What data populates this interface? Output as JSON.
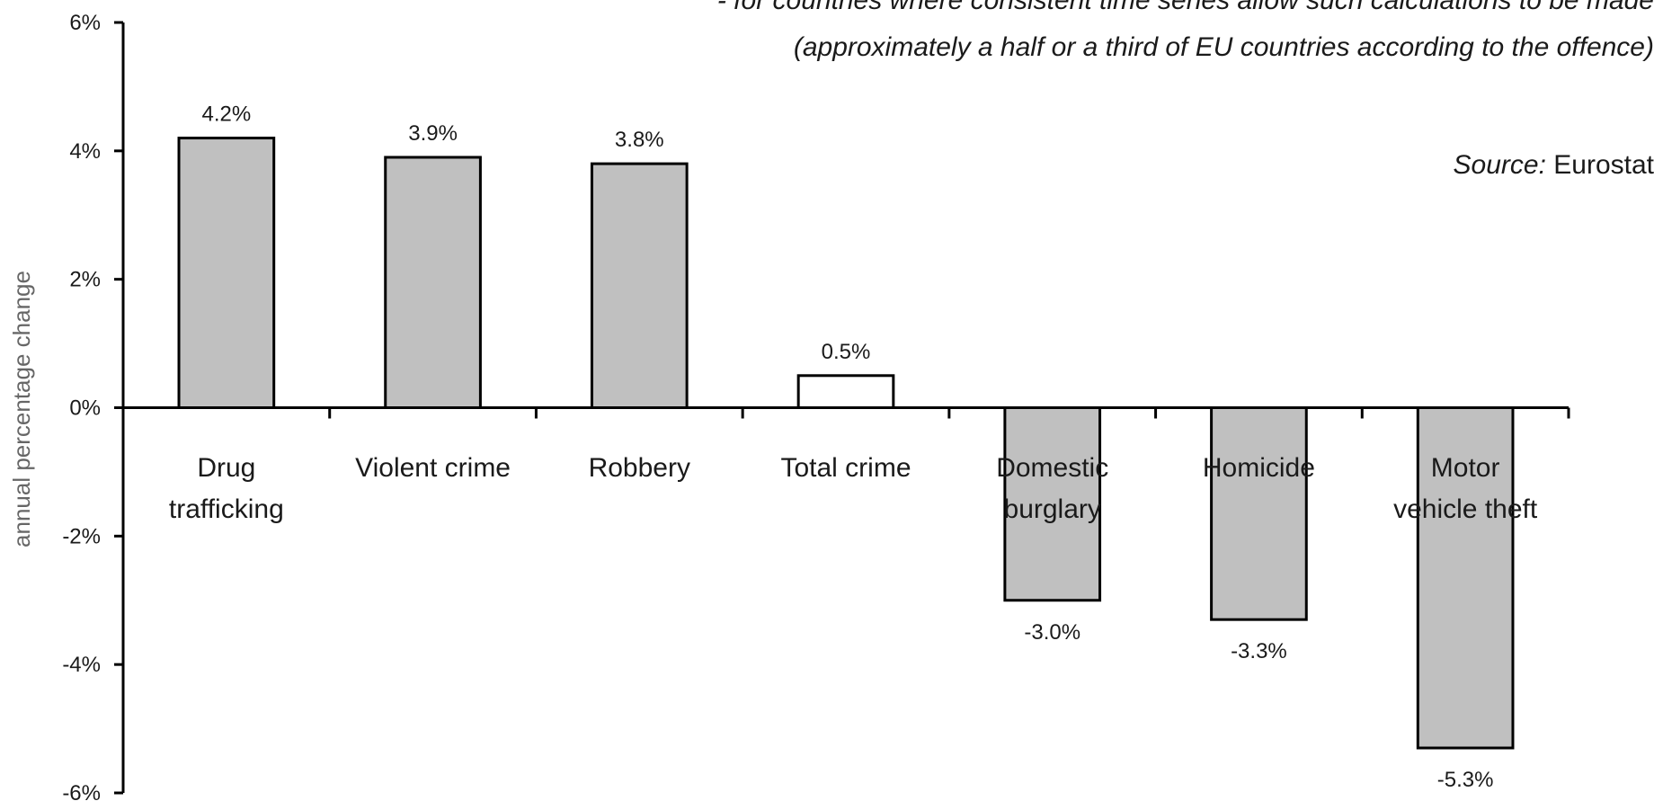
{
  "chart_data": {
    "type": "bar",
    "title": "",
    "notes": [
      "- for countries where consistent time series allow such calculations to be made",
      "(approximately a half or a third of EU countries according to the offence)"
    ],
    "source_label": "Source:",
    "source_value": "Eurostat",
    "xlabel": "",
    "ylabel": "annual percentage change",
    "ylim": [
      -6,
      6
    ],
    "yticks": [
      6,
      4,
      2,
      0,
      -2,
      -4,
      -6
    ],
    "ytick_labels": [
      "6%",
      "4%",
      "2%",
      "0%",
      "-2%",
      "-4%",
      "-6%"
    ],
    "categories": [
      [
        "Drug",
        "trafficking"
      ],
      [
        "Violent crime"
      ],
      [
        "Robbery"
      ],
      [
        "Total crime"
      ],
      [
        "Domestic",
        "burglary"
      ],
      [
        "Homicide"
      ],
      [
        "Motor",
        "vehicle theft"
      ]
    ],
    "values": [
      4.2,
      3.9,
      3.8,
      0.5,
      -3.0,
      -3.3,
      -5.3
    ],
    "data_labels": [
      "4.2%",
      "3.9%",
      "3.8%",
      "0.5%",
      "-3.0%",
      "-3.3%",
      "-5.3%"
    ],
    "highlight_category_index": 3,
    "grid": false,
    "legend": "none",
    "colors": {
      "bar_fill": "#c0c0c0",
      "highlight_fill": "#ffffff",
      "bar_stroke": "#000000",
      "axis": "#000000",
      "text": "#1a1a1a",
      "ylabel": "#666666"
    }
  }
}
